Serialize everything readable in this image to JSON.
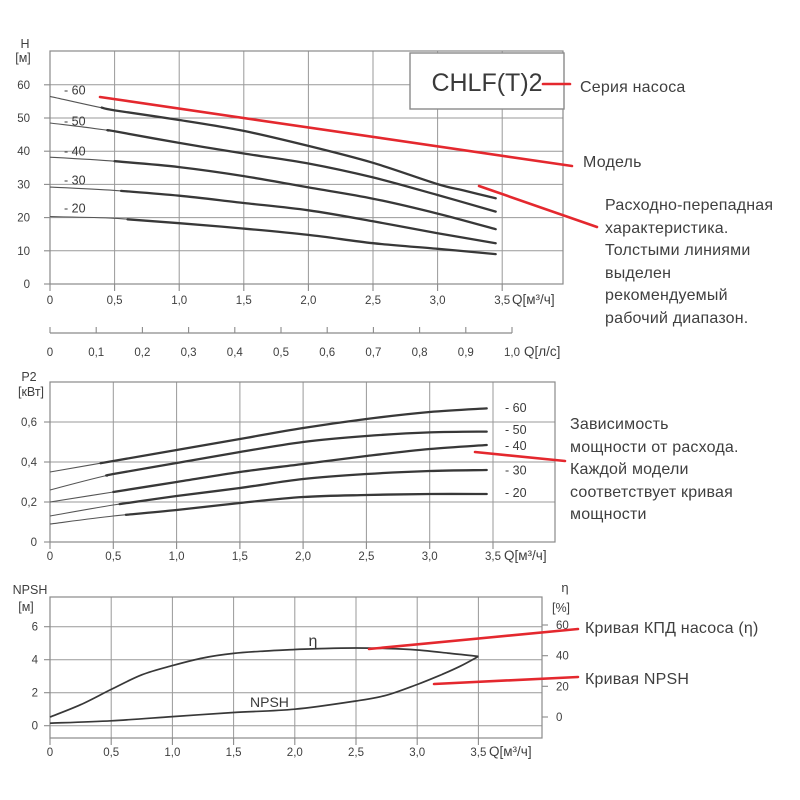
{
  "colors": {
    "red": "#e4282e",
    "curve": "#383838",
    "curve_thin": "#555555",
    "grid": "#999999",
    "border": "#8a8a8a",
    "text": "#3f3f3f",
    "background": "#ffffff"
  },
  "annotations": {
    "series_label": "Серия насоса",
    "model_label": "Модель",
    "flow_lines": [
      "Расходно-перепадная",
      "характеристика.",
      "Толстыми линиями",
      "выделен",
      "рекомендуемый",
      "рабочий диапазон."
    ],
    "power_lines": [
      "Зависимость",
      "мощности от расхода.",
      "Каждой модели",
      "соответствует кривая",
      "мощности"
    ],
    "efficiency_label": "Кривая КПД насоса (η)",
    "npsh_label": "Кривая NPSH"
  },
  "chart_data": [
    {
      "type": "line",
      "title": "CHLF(T)2",
      "ylabel": "H",
      "ylabel_unit": "[м]",
      "xlabel": "Q[м³/ч]",
      "xlim": [
        0,
        3.97
      ],
      "ylim": [
        0,
        70
      ],
      "grid": true,
      "x_tick_values": [
        0,
        0.5,
        1,
        1.5,
        2,
        2.5,
        3,
        3.5
      ],
      "x_tick_labels": [
        "0",
        "0,5",
        "1,0",
        "1,5",
        "2,0",
        "2,5",
        "3,0",
        "3,5"
      ],
      "y_tick_values": [
        0,
        10,
        20,
        30,
        40,
        50,
        60
      ],
      "y_tick_labels": [
        "0",
        "10",
        "20",
        "30",
        "40",
        "50",
        "60"
      ],
      "series": [
        {
          "name": "- 60",
          "thick_from": 0.4,
          "points": [
            [
              0,
              56.5
            ],
            [
              0.5,
              52.3
            ],
            [
              1,
              49.4
            ],
            [
              1.5,
              46.1
            ],
            [
              2,
              41.6
            ],
            [
              2.5,
              36.5
            ],
            [
              3,
              30.1
            ],
            [
              3.2,
              28.2
            ],
            [
              3.45,
              25.8
            ]
          ]
        },
        {
          "name": "- 50",
          "thick_from": 0.45,
          "points": [
            [
              0,
              48.5
            ],
            [
              0.5,
              46.0
            ],
            [
              1,
              42.5
            ],
            [
              1.5,
              39.3
            ],
            [
              2,
              36.3
            ],
            [
              2.5,
              32.1
            ],
            [
              3,
              26.8
            ],
            [
              3.45,
              21.8
            ]
          ]
        },
        {
          "name": "- 40",
          "thick_from": 0.5,
          "points": [
            [
              0,
              38.2
            ],
            [
              0.5,
              37.0
            ],
            [
              1,
              35.2
            ],
            [
              1.5,
              32.5
            ],
            [
              2,
              29.1
            ],
            [
              2.5,
              25.7
            ],
            [
              3,
              21.2
            ],
            [
              3.45,
              16.5
            ]
          ]
        },
        {
          "name": "- 30",
          "thick_from": 0.55,
          "points": [
            [
              0,
              29.2
            ],
            [
              0.5,
              28.2
            ],
            [
              1,
              26.6
            ],
            [
              1.5,
              24.4
            ],
            [
              2,
              22.2
            ],
            [
              2.5,
              18.9
            ],
            [
              3,
              15.3
            ],
            [
              3.45,
              12.3
            ]
          ]
        },
        {
          "name": "- 20",
          "thick_from": 0.6,
          "points": [
            [
              0,
              20.3
            ],
            [
              0.5,
              19.8
            ],
            [
              1,
              18.3
            ],
            [
              1.5,
              16.7
            ],
            [
              2,
              14.8
            ],
            [
              2.5,
              12.3
            ],
            [
              3,
              10.6
            ],
            [
              3.45,
              9.0
            ]
          ]
        }
      ],
      "secondary_axis": {
        "label": "Q[л/с]",
        "tick_labels": [
          "0",
          "0,1",
          "0,2",
          "0,3",
          "0,4",
          "0,5",
          "0,6",
          "0,7",
          "0,8",
          "0,9",
          "1,0"
        ]
      }
    },
    {
      "type": "line",
      "ylabel": "P2",
      "ylabel_unit": "[кВт]",
      "xlabel": "Q[м³/ч]",
      "xlim": [
        0,
        3.99
      ],
      "ylim": [
        0,
        0.8
      ],
      "grid": true,
      "x_tick_values": [
        0,
        0.5,
        1,
        1.5,
        2,
        2.5,
        3,
        3.5
      ],
      "x_tick_labels": [
        "0",
        "0,5",
        "1,0",
        "1,5",
        "2,0",
        "2,5",
        "3,0",
        "3,5"
      ],
      "y_tick_values": [
        0,
        0.2,
        0.4,
        0.6
      ],
      "y_tick_labels": [
        "0",
        "0,2",
        "0,4",
        "0,6"
      ],
      "series": [
        {
          "name": "- 60",
          "thick_from": 0.4,
          "points": [
            [
              0,
              0.35
            ],
            [
              0.5,
              0.405
            ],
            [
              1,
              0.46
            ],
            [
              1.5,
              0.515
            ],
            [
              2,
              0.57
            ],
            [
              2.5,
              0.615
            ],
            [
              3,
              0.65
            ],
            [
              3.45,
              0.668
            ]
          ]
        },
        {
          "name": "- 50",
          "thick_from": 0.45,
          "points": [
            [
              0,
              0.26
            ],
            [
              0.5,
              0.34
            ],
            [
              1,
              0.395
            ],
            [
              1.5,
              0.45
            ],
            [
              2,
              0.5
            ],
            [
              2.5,
              0.53
            ],
            [
              3,
              0.548
            ],
            [
              3.45,
              0.552
            ]
          ]
        },
        {
          "name": "- 40",
          "thick_from": 0.5,
          "points": [
            [
              0,
              0.2
            ],
            [
              0.5,
              0.25
            ],
            [
              1,
              0.3
            ],
            [
              1.5,
              0.35
            ],
            [
              2,
              0.39
            ],
            [
              2.5,
              0.43
            ],
            [
              3,
              0.465
            ],
            [
              3.45,
              0.485
            ]
          ]
        },
        {
          "name": "- 30",
          "thick_from": 0.55,
          "points": [
            [
              0,
              0.13
            ],
            [
              0.5,
              0.185
            ],
            [
              1,
              0.23
            ],
            [
              1.5,
              0.27
            ],
            [
              2,
              0.315
            ],
            [
              2.5,
              0.34
            ],
            [
              3,
              0.355
            ],
            [
              3.45,
              0.36
            ]
          ]
        },
        {
          "name": "- 20",
          "thick_from": 0.6,
          "points": [
            [
              0,
              0.09
            ],
            [
              0.5,
              0.13
            ],
            [
              1,
              0.16
            ],
            [
              1.5,
              0.195
            ],
            [
              2,
              0.225
            ],
            [
              2.5,
              0.235
            ],
            [
              3,
              0.24
            ],
            [
              3.45,
              0.24
            ]
          ]
        }
      ]
    },
    {
      "type": "line",
      "ylabel": "NPSH",
      "ylabel_unit": "[м]",
      "ylabel_right": "η",
      "ylabel_right_unit": "[%]",
      "xlabel": "Q[м³/ч]",
      "xlim": [
        0,
        4.02
      ],
      "ylim": [
        0,
        7
      ],
      "ylim_right": [
        0,
        70
      ],
      "grid": true,
      "x_tick_values": [
        0,
        0.5,
        1,
        1.5,
        2,
        2.5,
        3,
        3.5
      ],
      "x_tick_labels": [
        "0",
        "0,5",
        "1,0",
        "1,5",
        "2,0",
        "2,5",
        "3,0",
        "3,5"
      ],
      "y_tick_values": [
        0,
        2,
        4,
        6
      ],
      "y_tick_labels": [
        "0",
        "2",
        "4",
        "6"
      ],
      "y2_tick_values": [
        0,
        20,
        40,
        60
      ],
      "y2_tick_labels": [
        "0",
        "20",
        "40",
        "60"
      ],
      "series": [
        {
          "name": "η",
          "axis": "right",
          "label_inline": "η",
          "points": [
            [
              0,
              0
            ],
            [
              0.25,
              8
            ],
            [
              0.5,
              18
            ],
            [
              0.75,
              27.5
            ],
            [
              1,
              33.5
            ],
            [
              1.25,
              38.5
            ],
            [
              1.5,
              41.5
            ],
            [
              1.75,
              43
            ],
            [
              2,
              44
            ],
            [
              2.25,
              44.7
            ],
            [
              2.5,
              45
            ],
            [
              2.75,
              44.7
            ],
            [
              3,
              43.7
            ],
            [
              3.25,
              41.7
            ],
            [
              3.5,
              39.5
            ]
          ]
        },
        {
          "name": "NPSH",
          "axis": "left",
          "label_inline": "NPSH",
          "points": [
            [
              0,
              0.15
            ],
            [
              0.5,
              0.3
            ],
            [
              1,
              0.55
            ],
            [
              1.5,
              0.8
            ],
            [
              2,
              1.0
            ],
            [
              2.5,
              1.5
            ],
            [
              2.75,
              1.85
            ],
            [
              3,
              2.5
            ],
            [
              3.2,
              3.1
            ],
            [
              3.35,
              3.6
            ],
            [
              3.5,
              4.2
            ]
          ]
        }
      ]
    }
  ]
}
